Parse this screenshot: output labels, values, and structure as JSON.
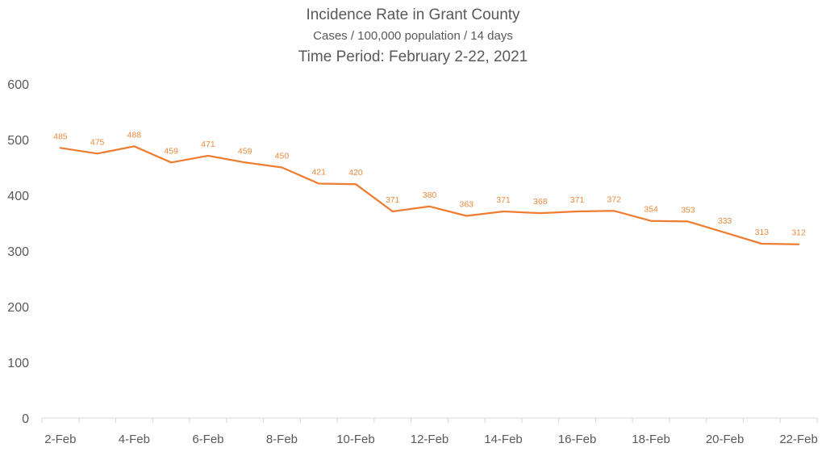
{
  "chart_data": {
    "type": "line",
    "title": "Incidence Rate in Grant County",
    "subtitle": "Cases / 100,000 population / 14 days",
    "period": "Time Period: February 2-22, 2021",
    "xlabel": "",
    "ylabel": "",
    "ylim": [
      0,
      600
    ],
    "yticks": [
      "0",
      "100",
      "200",
      "300",
      "400",
      "500",
      "600"
    ],
    "x_tick_labels": [
      "2-Feb",
      "4-Feb",
      "6-Feb",
      "8-Feb",
      "10-Feb",
      "12-Feb",
      "14-Feb",
      "16-Feb",
      "18-Feb",
      "20-Feb",
      "22-Feb"
    ],
    "x": [
      "2-Feb",
      "3-Feb",
      "4-Feb",
      "5-Feb",
      "6-Feb",
      "7-Feb",
      "8-Feb",
      "9-Feb",
      "10-Feb",
      "11-Feb",
      "12-Feb",
      "13-Feb",
      "14-Feb",
      "15-Feb",
      "16-Feb",
      "17-Feb",
      "18-Feb",
      "19-Feb",
      "20-Feb",
      "21-Feb",
      "22-Feb"
    ],
    "series": [
      {
        "values": [
          485,
          475,
          488,
          459,
          471,
          459,
          450,
          421,
          420,
          371,
          380,
          363,
          371,
          368,
          371,
          372,
          354,
          353,
          333,
          313,
          312
        ],
        "data_labels": [
          "485",
          "475",
          "488",
          "459",
          "471",
          "459",
          "450",
          "421",
          "420",
          "371",
          "380",
          "363",
          "371",
          "368",
          "371",
          "372",
          "354",
          "353",
          "333",
          "313",
          "312"
        ],
        "color": "#ED7D31"
      }
    ],
    "grid": false,
    "legend": "none"
  }
}
